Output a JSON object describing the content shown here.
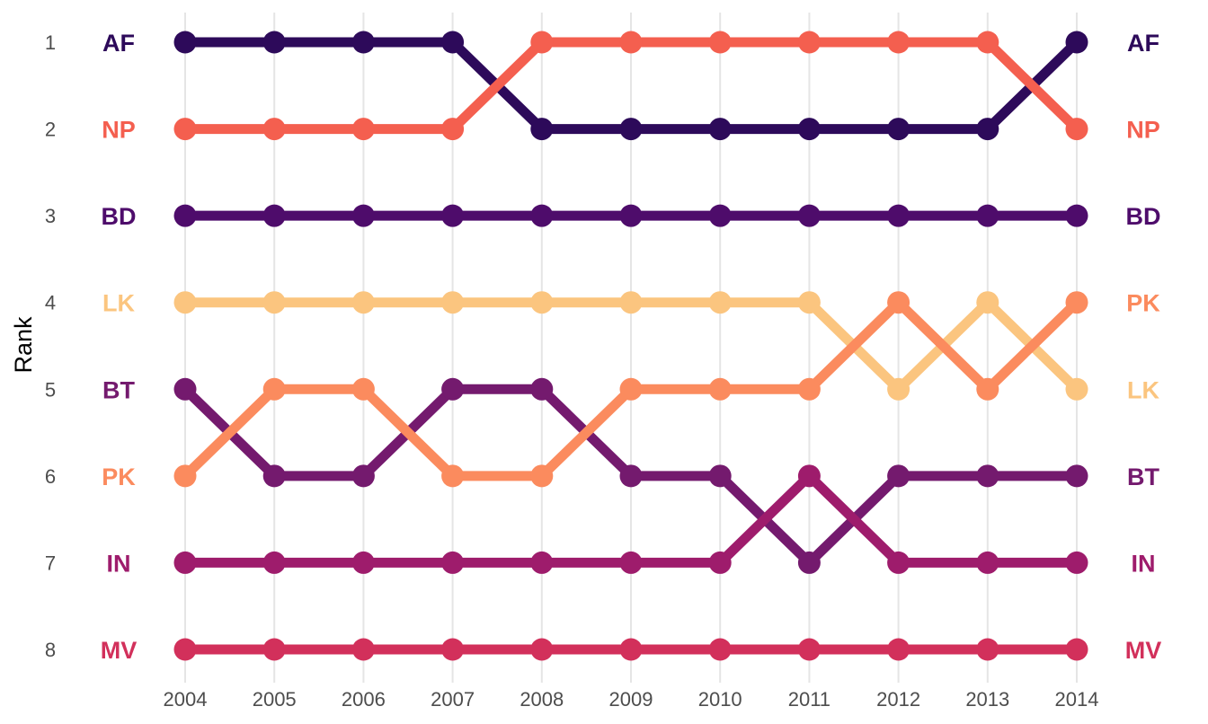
{
  "chart_data": {
    "type": "line",
    "chart_kind": "bump chart",
    "ylabel": "Rank",
    "xlabel": "",
    "x": [
      2004,
      2005,
      2006,
      2007,
      2008,
      2009,
      2010,
      2011,
      2012,
      2013,
      2014
    ],
    "y_ticks": [
      1,
      2,
      3,
      4,
      5,
      6,
      7,
      8
    ],
    "y_reversed": true,
    "ylim": [
      1,
      8
    ],
    "xlim": [
      2004,
      2014
    ],
    "grid": "vertical major gridlines only",
    "legend": "none (series labels drawn at left and right ends)",
    "series": [
      {
        "name": "AF",
        "color": "#2D0A5A",
        "values": [
          1,
          1,
          1,
          1,
          2,
          2,
          2,
          2,
          2,
          2,
          1
        ]
      },
      {
        "name": "NP",
        "color": "#F45F4F",
        "values": [
          2,
          2,
          2,
          2,
          1,
          1,
          1,
          1,
          1,
          1,
          2
        ]
      },
      {
        "name": "BD",
        "color": "#4E0C6B",
        "values": [
          3,
          3,
          3,
          3,
          3,
          3,
          3,
          3,
          3,
          3,
          3
        ]
      },
      {
        "name": "LK",
        "color": "#FBC57F",
        "values": [
          4,
          4,
          4,
          4,
          4,
          4,
          4,
          4,
          5,
          4,
          5
        ]
      },
      {
        "name": "BT",
        "color": "#741A6E",
        "values": [
          5,
          6,
          6,
          5,
          5,
          6,
          6,
          7,
          6,
          6,
          6
        ]
      },
      {
        "name": "PK",
        "color": "#FB8B5E",
        "values": [
          6,
          5,
          5,
          6,
          6,
          5,
          5,
          5,
          4,
          5,
          4
        ]
      },
      {
        "name": "IN",
        "color": "#9E1C6C",
        "values": [
          7,
          7,
          7,
          7,
          7,
          7,
          7,
          6,
          7,
          7,
          7
        ]
      },
      {
        "name": "MV",
        "color": "#D2305B",
        "values": [
          8,
          8,
          8,
          8,
          8,
          8,
          8,
          8,
          8,
          8,
          8
        ]
      }
    ]
  }
}
